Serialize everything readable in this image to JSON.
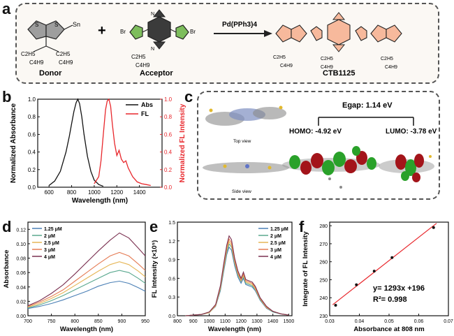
{
  "panels": {
    "a": {
      "letter": "a",
      "donor_label": "Donor",
      "acceptor_label": "Acceptor",
      "product_label": "CTB1125",
      "catalyst": "Pd(PPh3)4",
      "plus": "+",
      "subst_c2h5": "C2H5",
      "subst_c4h9": "C4H9",
      "atom_s": "S",
      "atom_n": "N",
      "atom_br": "Br",
      "atom_sn": "Sn"
    },
    "b": {
      "letter": "b"
    },
    "c": {
      "letter": "c",
      "gap_text": "Egap: 1.14 eV",
      "homo_text": "HOMO: -4.92 eV",
      "lumo_text": "LUMO: -3.78 eV",
      "top_view": "Top view",
      "side_view": "Side view"
    },
    "d": {
      "letter": "d"
    },
    "e": {
      "letter": "e"
    },
    "f": {
      "letter": "f",
      "equation": "y= 1293x +196",
      "r2": "R²= 0.998"
    }
  },
  "chart_data": [
    {
      "panel": "b",
      "type": "line",
      "xlabel": "Wavelength (nm)",
      "ylabel": "Normalized Absorbance",
      "y2label": "Normalized FL Intensity",
      "xlim": [
        500,
        1600
      ],
      "ylim": [
        0,
        1.0
      ],
      "y2lim": [
        0,
        1.0
      ],
      "xticks": [
        600,
        800,
        1000,
        1200,
        1400
      ],
      "yticks": [
        0.0,
        0.2,
        0.4,
        0.6,
        0.8,
        1.0
      ],
      "y2ticks": [
        0.0,
        0.2,
        0.4,
        0.6,
        0.8,
        1.0
      ],
      "legend": "top-right",
      "series": [
        {
          "name": "Abs",
          "color": "#111111",
          "x": [
            600,
            650,
            700,
            750,
            780,
            800,
            820,
            840,
            855,
            870,
            890,
            910,
            940,
            970,
            1000,
            1040,
            1080
          ],
          "y": [
            0.02,
            0.07,
            0.18,
            0.4,
            0.58,
            0.72,
            0.86,
            0.96,
            1.0,
            0.95,
            0.8,
            0.6,
            0.35,
            0.18,
            0.08,
            0.03,
            0.01
          ]
        },
        {
          "name": "FL",
          "color": "#e8262b",
          "axis": "right",
          "x": [
            1000,
            1040,
            1060,
            1080,
            1100,
            1115,
            1130,
            1145,
            1160,
            1180,
            1200,
            1220,
            1240,
            1260,
            1280,
            1300,
            1340,
            1380,
            1420,
            1460,
            1500
          ],
          "y": [
            0.04,
            0.12,
            0.3,
            0.6,
            0.88,
            0.98,
            1.0,
            0.92,
            0.72,
            0.5,
            0.36,
            0.42,
            0.32,
            0.28,
            0.3,
            0.22,
            0.12,
            0.06,
            0.04,
            0.03,
            0.02
          ]
        }
      ]
    },
    {
      "panel": "d",
      "type": "line",
      "xlabel": "Wavelength (nm)",
      "ylabel": "Absorbance",
      "xlim": [
        700,
        950
      ],
      "ylim": [
        0,
        0.13
      ],
      "xticks": [
        700,
        750,
        800,
        850,
        900,
        950
      ],
      "yticks": [
        0.0,
        0.02,
        0.04,
        0.06,
        0.08,
        0.1,
        0.12
      ],
      "legend": "top-left",
      "x": [
        700,
        725,
        750,
        775,
        800,
        825,
        850,
        875,
        895,
        915,
        935,
        950
      ],
      "series": [
        {
          "name": "1.25 μM",
          "color": "#4a7fb5",
          "values": [
            0.01,
            0.013,
            0.017,
            0.022,
            0.028,
            0.034,
            0.041,
            0.046,
            0.048,
            0.045,
            0.039,
            0.034
          ]
        },
        {
          "name": "2 μM",
          "color": "#5aa88f",
          "values": [
            0.011,
            0.015,
            0.021,
            0.028,
            0.036,
            0.044,
            0.052,
            0.06,
            0.063,
            0.06,
            0.052,
            0.045
          ]
        },
        {
          "name": "2.5 μM",
          "color": "#e6b656",
          "values": [
            0.012,
            0.017,
            0.024,
            0.032,
            0.042,
            0.052,
            0.062,
            0.071,
            0.075,
            0.071,
            0.062,
            0.054
          ]
        },
        {
          "name": "3 μM",
          "color": "#e57c55",
          "values": [
            0.013,
            0.019,
            0.027,
            0.036,
            0.048,
            0.06,
            0.072,
            0.083,
            0.088,
            0.083,
            0.072,
            0.063
          ]
        },
        {
          "name": "4 μM",
          "color": "#7a3050",
          "values": [
            0.014,
            0.021,
            0.031,
            0.043,
            0.058,
            0.074,
            0.09,
            0.105,
            0.115,
            0.108,
            0.094,
            0.083
          ]
        }
      ]
    },
    {
      "panel": "e",
      "type": "line",
      "xlabel": "Wavelength (nm)",
      "ylabel": "FL Intensity (×10⁵)",
      "xlim": [
        800,
        1520
      ],
      "ylim": [
        0,
        1.5
      ],
      "xticks": [
        800,
        900,
        1000,
        1100,
        1200,
        1300,
        1400,
        1500
      ],
      "yticks": [
        0.0,
        0.3,
        0.6,
        0.9,
        1.2,
        1.5
      ],
      "legend": "top-right",
      "x": [
        850,
        900,
        950,
        1000,
        1040,
        1070,
        1090,
        1110,
        1125,
        1140,
        1160,
        1180,
        1200,
        1215,
        1230,
        1250,
        1270,
        1290,
        1320,
        1360,
        1400,
        1450,
        1500
      ],
      "series": [
        {
          "name": "1.25 μM",
          "color": "#4a7fb5",
          "values": [
            0.0,
            0.01,
            0.02,
            0.05,
            0.15,
            0.4,
            0.7,
            0.98,
            1.1,
            1.05,
            0.8,
            0.62,
            0.52,
            0.6,
            0.5,
            0.48,
            0.46,
            0.4,
            0.25,
            0.12,
            0.06,
            0.03,
            0.01
          ]
        },
        {
          "name": "2 μM",
          "color": "#5aa88f",
          "values": [
            0.0,
            0.01,
            0.02,
            0.05,
            0.16,
            0.42,
            0.73,
            1.02,
            1.15,
            1.1,
            0.84,
            0.65,
            0.55,
            0.63,
            0.52,
            0.5,
            0.48,
            0.42,
            0.26,
            0.13,
            0.06,
            0.03,
            0.01
          ]
        },
        {
          "name": "2.5 μM",
          "color": "#e6b656",
          "values": [
            0.0,
            0.01,
            0.02,
            0.05,
            0.16,
            0.44,
            0.76,
            1.05,
            1.19,
            1.13,
            0.86,
            0.67,
            0.56,
            0.65,
            0.54,
            0.52,
            0.5,
            0.43,
            0.27,
            0.13,
            0.07,
            0.03,
            0.01
          ]
        },
        {
          "name": "3 μM",
          "color": "#e57c55",
          "values": [
            0.0,
            0.01,
            0.02,
            0.06,
            0.17,
            0.46,
            0.79,
            1.09,
            1.23,
            1.17,
            0.89,
            0.69,
            0.58,
            0.67,
            0.56,
            0.54,
            0.52,
            0.45,
            0.28,
            0.14,
            0.07,
            0.03,
            0.01
          ]
        },
        {
          "name": "4 μM",
          "color": "#7a3050",
          "values": [
            0.0,
            0.01,
            0.02,
            0.06,
            0.18,
            0.48,
            0.82,
            1.13,
            1.28,
            1.22,
            0.92,
            0.72,
            0.6,
            0.7,
            0.58,
            0.56,
            0.54,
            0.47,
            0.29,
            0.15,
            0.07,
            0.03,
            0.01
          ]
        }
      ]
    },
    {
      "panel": "f",
      "type": "scatter",
      "xlabel": "Absorbance at 808 nm",
      "ylabel": "Integrate of FL Intensity",
      "xlim": [
        0.03,
        0.07
      ],
      "ylim": [
        230,
        282
      ],
      "xticks": [
        0.03,
        0.04,
        0.05,
        0.06,
        0.07
      ],
      "yticks": [
        230,
        240,
        250,
        260,
        270,
        280
      ],
      "points": [
        {
          "x": 0.032,
          "y": 235.8
        },
        {
          "x": 0.039,
          "y": 247.2
        },
        {
          "x": 0.045,
          "y": 254.8
        },
        {
          "x": 0.051,
          "y": 262.3
        },
        {
          "x": 0.065,
          "y": 279.0
        }
      ],
      "fit": {
        "slope": 1293,
        "intercept": 196,
        "x_range": [
          0.031,
          0.066
        ],
        "color": "#e8262b"
      }
    }
  ]
}
